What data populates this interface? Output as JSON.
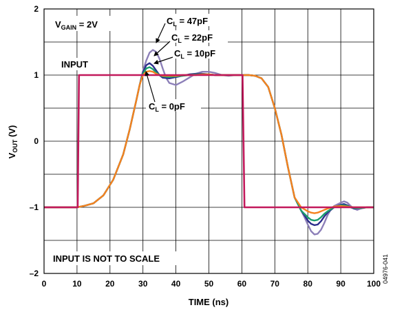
{
  "chart_data": {
    "type": "line",
    "xlabel": "TIME (ns)",
    "ylabel": {
      "main": "V",
      "sub": "OUT",
      "unit": " (V)"
    },
    "xlim": [
      0,
      100
    ],
    "ylim": [
      -2,
      2
    ],
    "xticks": [
      0,
      10,
      20,
      30,
      40,
      50,
      60,
      70,
      80,
      90,
      100
    ],
    "yticks": [
      {
        "value": 2,
        "label": "2"
      },
      {
        "value": 1,
        "label": "1"
      },
      {
        "value": 0,
        "label": "0"
      },
      {
        "value": -1,
        "label": "–1"
      },
      {
        "value": -2,
        "label": "–2"
      }
    ],
    "grid": true,
    "series": [
      {
        "name": "INPUT",
        "color": "#c2185b",
        "x": [
          0,
          10.2,
          10.6,
          60.2,
          60.8,
          100
        ],
        "y": [
          -1,
          -1,
          1,
          1,
          -1,
          -1
        ]
      },
      {
        "name": "C_L = 47pF",
        "color": "#8c7fb8",
        "x": [
          0,
          10,
          12,
          15,
          18,
          21,
          24,
          26,
          28,
          29,
          30,
          31,
          32,
          33,
          34,
          35,
          36,
          37,
          38,
          40,
          42,
          44,
          46,
          48,
          50,
          52,
          54,
          56,
          58,
          60,
          62,
          64,
          66,
          68,
          70,
          72,
          74,
          76,
          78,
          79,
          80,
          81,
          82,
          83,
          84,
          85,
          86,
          87,
          88,
          90,
          91,
          92,
          93,
          94,
          95,
          96,
          98,
          100
        ],
        "y": [
          -1,
          -1,
          -0.98,
          -0.94,
          -0.82,
          -0.58,
          -0.2,
          0.18,
          0.62,
          0.85,
          1.06,
          1.22,
          1.34,
          1.38,
          1.35,
          1.25,
          1.1,
          0.96,
          0.88,
          0.85,
          0.9,
          0.96,
          1.02,
          1.05,
          1.05,
          1.03,
          1.0,
          0.99,
          1.0,
          1.0,
          1.0,
          0.99,
          0.95,
          0.82,
          0.5,
          0.1,
          -0.4,
          -0.85,
          -1.05,
          -1.15,
          -1.26,
          -1.36,
          -1.41,
          -1.4,
          -1.34,
          -1.24,
          -1.12,
          -1.03,
          -0.98,
          -0.93,
          -0.91,
          -0.93,
          -0.98,
          -1.02,
          -1.04,
          -1.02,
          -1.0,
          -1.0
        ]
      },
      {
        "name": "C_L = 22pF",
        "color": "#2d2d8c",
        "x": [
          0,
          10,
          12,
          15,
          18,
          21,
          24,
          26,
          28,
          29,
          30,
          31,
          32,
          33,
          34,
          35,
          36,
          38,
          40,
          42,
          44,
          46,
          48,
          50,
          52,
          54,
          56,
          58,
          60,
          62,
          64,
          66,
          68,
          70,
          72,
          74,
          76,
          78,
          79,
          80,
          81,
          82,
          83,
          84,
          85,
          86,
          88,
          90,
          91,
          92,
          93,
          94,
          96,
          98,
          100
        ],
        "y": [
          -1,
          -1,
          -0.98,
          -0.94,
          -0.82,
          -0.58,
          -0.2,
          0.18,
          0.62,
          0.85,
          1.04,
          1.15,
          1.18,
          1.14,
          1.07,
          1.0,
          0.96,
          0.95,
          0.97,
          0.99,
          1.01,
          1.02,
          1.02,
          1.01,
          1.0,
          1.0,
          1.0,
          1.0,
          1.0,
          1.0,
          0.99,
          0.95,
          0.82,
          0.5,
          0.1,
          -0.4,
          -0.85,
          -1.05,
          -1.12,
          -1.2,
          -1.25,
          -1.27,
          -1.26,
          -1.21,
          -1.14,
          -1.08,
          -1.0,
          -0.96,
          -0.95,
          -0.97,
          -1.0,
          -1.02,
          -1.01,
          -1.0,
          -1.0
        ]
      },
      {
        "name": "C_L = 10pF",
        "color": "#1a9e6e",
        "x": [
          0,
          10,
          12,
          15,
          18,
          21,
          24,
          26,
          28,
          29,
          30,
          31,
          32,
          33,
          34,
          35,
          36,
          38,
          40,
          42,
          44,
          46,
          48,
          50,
          52,
          54,
          56,
          58,
          60,
          62,
          64,
          66,
          68,
          70,
          72,
          74,
          76,
          78,
          79,
          80,
          81,
          82,
          83,
          84,
          85,
          86,
          88,
          90,
          91,
          92,
          93,
          94,
          96,
          98,
          100
        ],
        "y": [
          -1,
          -1,
          -0.98,
          -0.94,
          -0.82,
          -0.58,
          -0.2,
          0.18,
          0.62,
          0.85,
          1.02,
          1.1,
          1.12,
          1.09,
          1.04,
          1.0,
          0.98,
          0.97,
          0.98,
          0.99,
          1.0,
          1.01,
          1.01,
          1.01,
          1.0,
          1.0,
          1.0,
          1.0,
          1.0,
          1.0,
          0.99,
          0.95,
          0.82,
          0.5,
          0.1,
          -0.4,
          -0.85,
          -1.05,
          -1.1,
          -1.15,
          -1.19,
          -1.2,
          -1.19,
          -1.15,
          -1.1,
          -1.06,
          -1.0,
          -0.97,
          -0.97,
          -0.98,
          -1.0,
          -1.01,
          -1.01,
          -1.0,
          -1.0
        ]
      },
      {
        "name": "C_L = 0pF",
        "color": "#f5821f",
        "x": [
          0,
          10,
          12,
          15,
          18,
          21,
          24,
          26,
          28,
          29,
          30,
          31,
          32,
          33,
          34,
          35,
          36,
          38,
          40,
          42,
          44,
          46,
          48,
          50,
          52,
          54,
          56,
          58,
          60,
          62,
          64,
          66,
          68,
          70,
          72,
          74,
          76,
          78,
          79,
          80,
          81,
          82,
          83,
          84,
          85,
          86,
          88,
          90,
          92,
          94,
          96,
          98,
          100
        ],
        "y": [
          -1,
          -1,
          -0.98,
          -0.94,
          -0.82,
          -0.58,
          -0.2,
          0.18,
          0.62,
          0.85,
          1.0,
          1.05,
          1.06,
          1.05,
          1.02,
          1.0,
          0.99,
          0.99,
          0.99,
          1.0,
          1.0,
          1.0,
          1.01,
          1.01,
          1.0,
          1.0,
          1.0,
          1.0,
          1.0,
          1.0,
          0.99,
          0.95,
          0.82,
          0.5,
          0.1,
          -0.4,
          -0.85,
          -1.0,
          -1.03,
          -1.06,
          -1.08,
          -1.09,
          -1.08,
          -1.06,
          -1.04,
          -1.02,
          -0.99,
          -0.98,
          -0.99,
          -1.0,
          -1.0,
          -1.0,
          -1.0
        ]
      }
    ],
    "annotations": {
      "vgain": {
        "main": "V",
        "sub": "GAIN",
        "rest": " = 2V"
      },
      "input": "INPUT",
      "scale_note": "INPUT IS NOT TO SCALE",
      "cl47": {
        "main": "C",
        "sub": "L",
        "rest": " = 47pF"
      },
      "cl22": {
        "main": "C",
        "sub": "L",
        "rest": " = 22pF"
      },
      "cl10": {
        "main": "C",
        "sub": "L",
        "rest": " = 10pF"
      },
      "cl0": {
        "main": "C",
        "sub": "L",
        "rest": " = 0pF"
      },
      "figure_id": "04976-041"
    }
  }
}
